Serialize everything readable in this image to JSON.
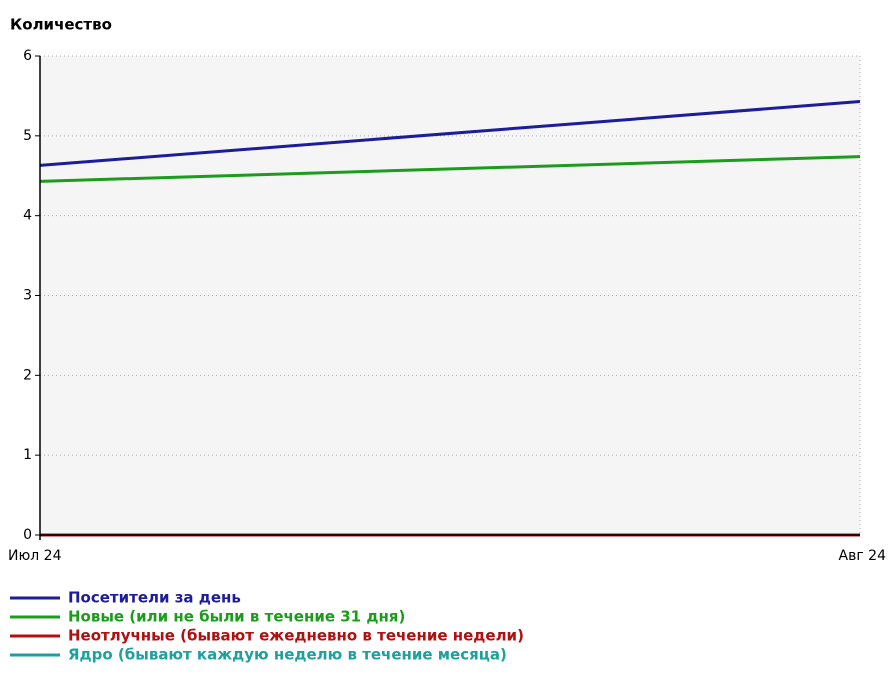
{
  "chart_data": {
    "type": "line",
    "y_label": "Количество",
    "categories": [
      "Июл 24",
      "Авг 24"
    ],
    "series": [
      {
        "name": "Посетители за день",
        "color": "#1c1c9c",
        "values": [
          4.63,
          5.43
        ]
      },
      {
        "name": "Новые (или не были в течение 31 дня)",
        "color": "#1c9c1c",
        "values": [
          4.43,
          4.74
        ]
      },
      {
        "name": "Неотлучные (бывают ежедневно в течение недели)",
        "color": "#b01010",
        "values": [
          0,
          0
        ]
      },
      {
        "name": "Ядро (бывают каждую неделю в течение месяца)",
        "color": "#1ca0a0",
        "values": [
          0,
          0
        ]
      }
    ],
    "ylim": [
      0,
      6
    ],
    "yticks": [
      0,
      1,
      2,
      3,
      4,
      5,
      6
    ],
    "grid": true
  }
}
